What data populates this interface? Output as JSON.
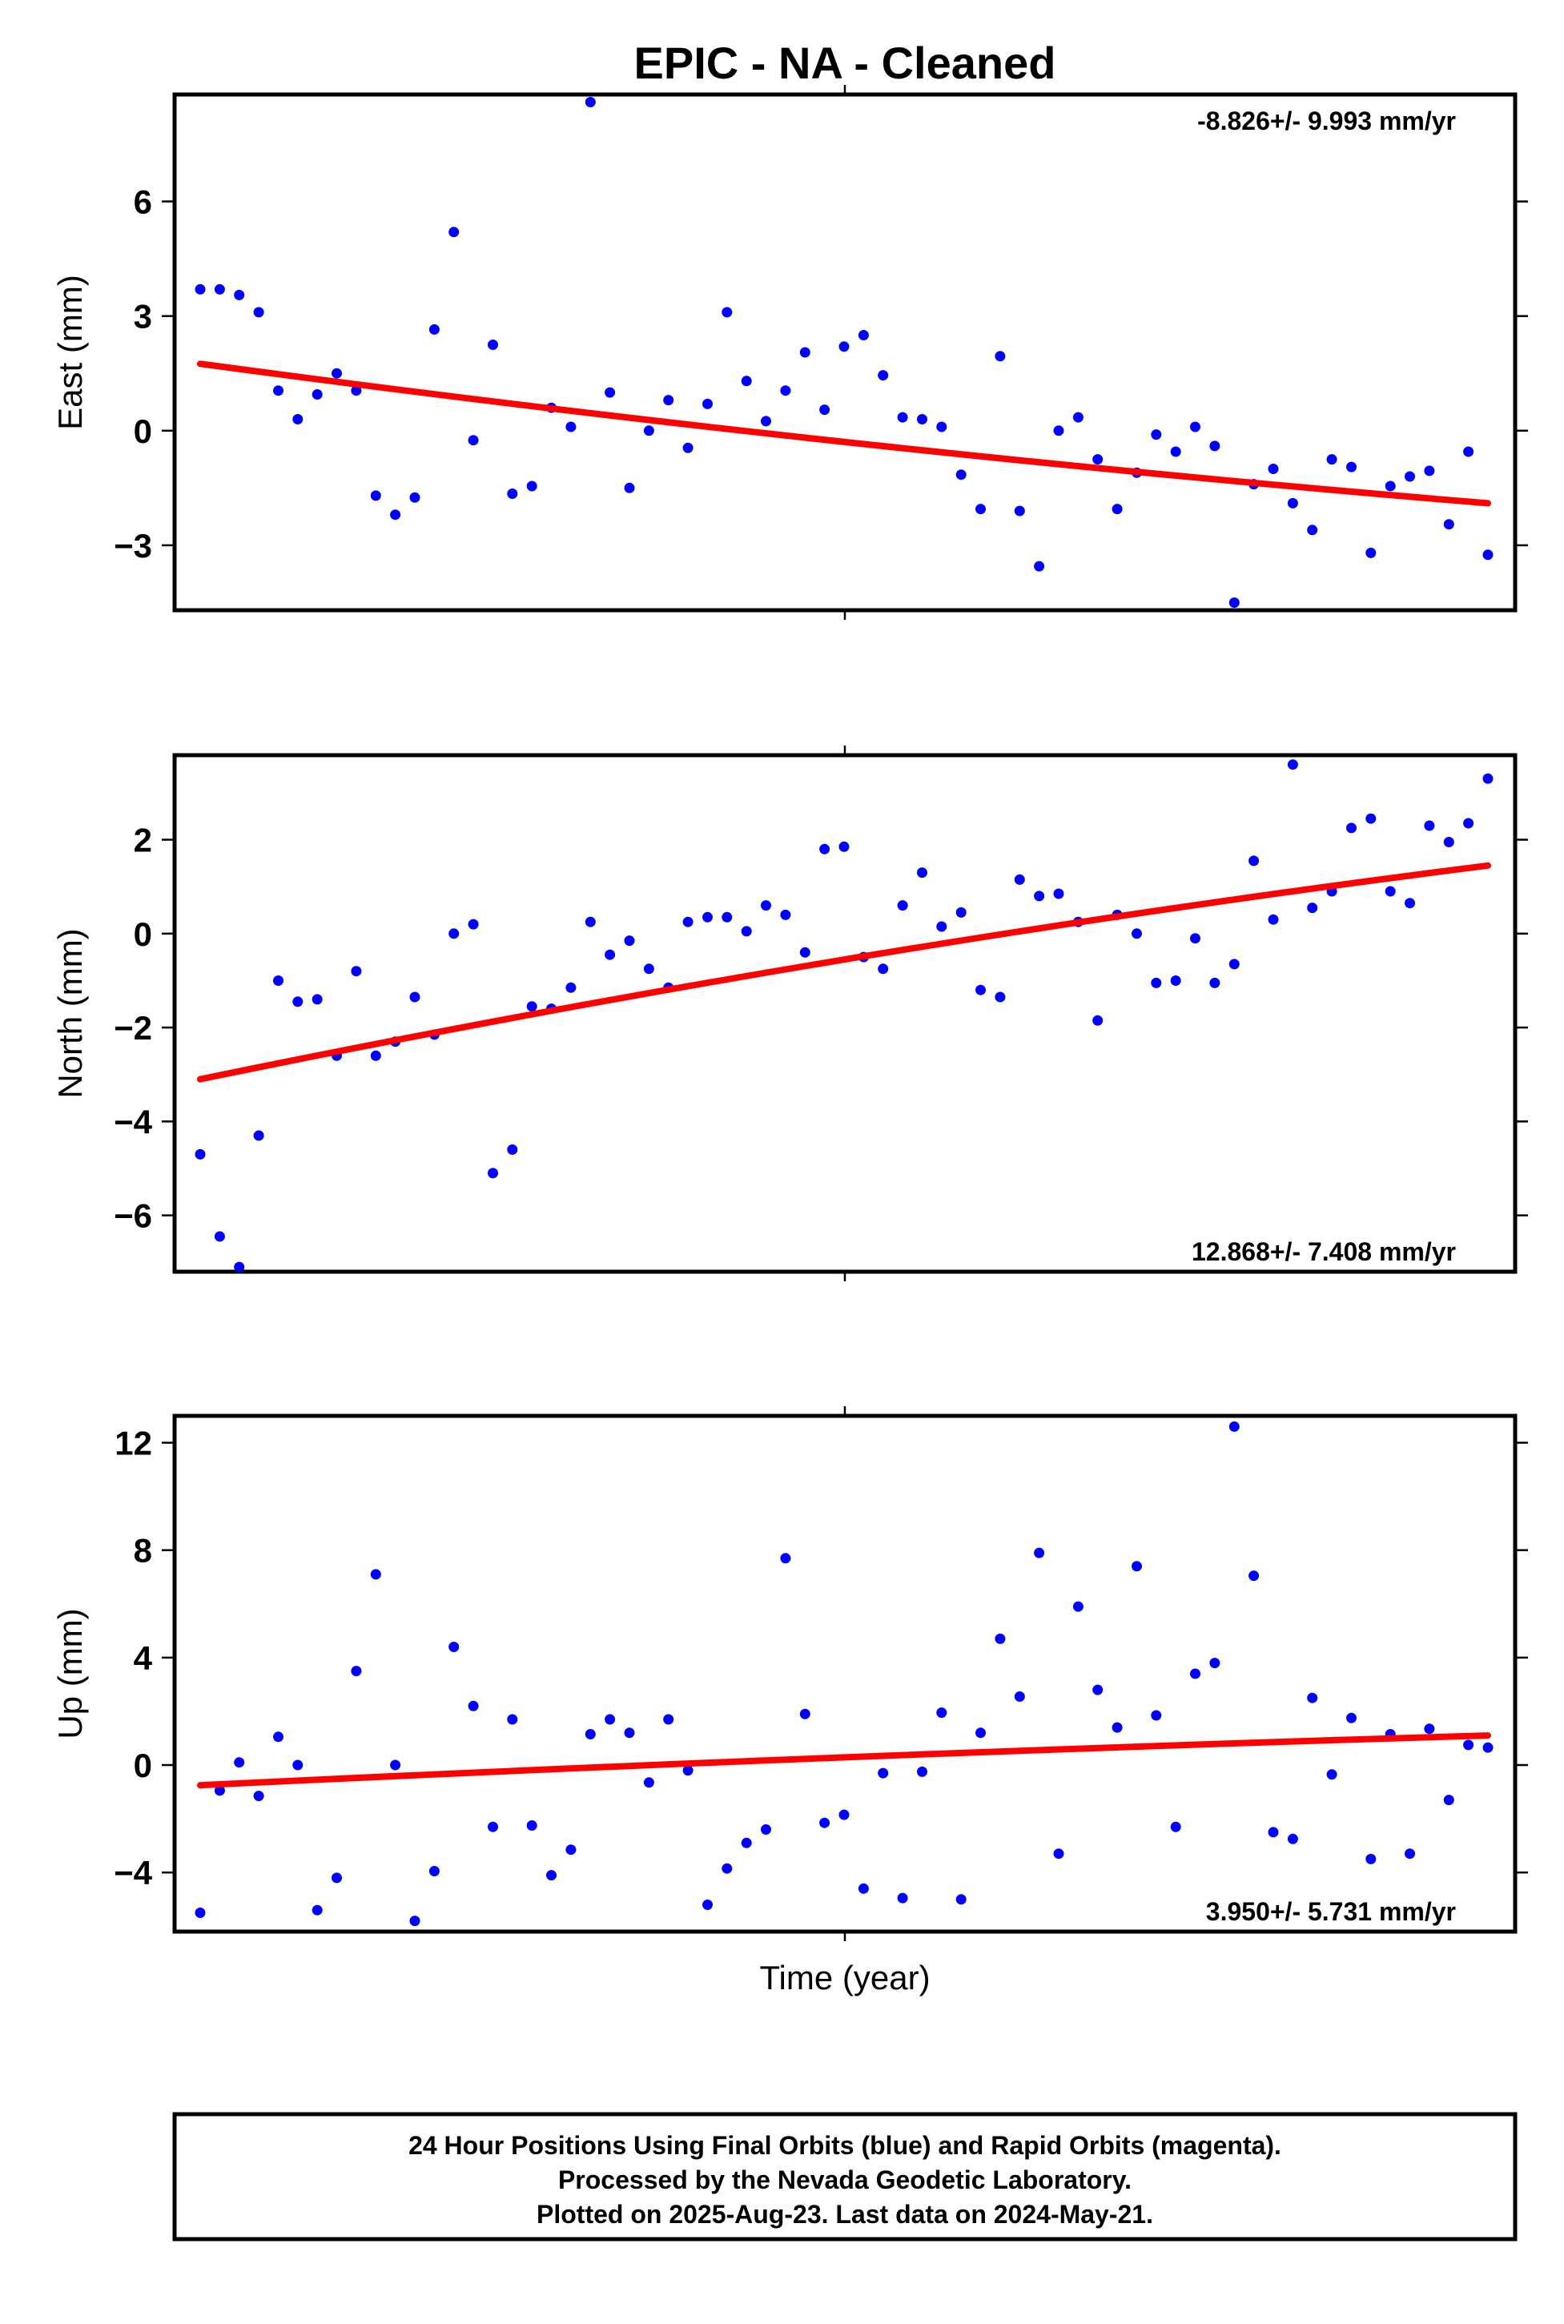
{
  "title": "EPIC  - NA - Cleaned",
  "xlabel": "Time (year)",
  "footer": [
    "24 Hour Positions Using Final Orbits (blue) and Rapid Orbits (magenta).",
    "Processed by the Nevada Geodetic Laboratory.",
    "Plotted on 2025-Aug-23. Last data on 2024-May-21."
  ],
  "colors": {
    "final_orbits": "#0000ff",
    "trend": "#ff0000"
  },
  "chart_data": [
    {
      "type": "scatter",
      "ylabel": "East (mm)",
      "ylim": [
        -4.7,
        8.8
      ],
      "yticks": [
        6,
        3,
        0,
        -3
      ],
      "ytick_labels": [
        "6",
        "3",
        "0",
        "−3"
      ],
      "rate_label": "-8.826+/- 9.993 mm/yr",
      "trend": [
        1.75,
        -1.9
      ],
      "y": [
        3.7,
        3.7,
        3.55,
        3.1,
        1.05,
        0.3,
        0.95,
        1.5,
        1.05,
        -1.7,
        -2.2,
        -1.75,
        2.65,
        5.2,
        -0.25,
        2.25,
        -1.65,
        -1.45,
        0.6,
        0.1,
        8.6,
        1.0,
        -1.5,
        0.0,
        0.8,
        -0.45,
        0.7,
        3.1,
        1.3,
        0.25,
        1.05,
        2.05,
        0.55,
        2.2,
        2.5,
        1.45,
        0.35,
        0.3,
        0.1,
        -1.15,
        -2.05,
        1.95,
        -2.1,
        -3.55,
        0.0,
        0.35,
        -0.75,
        -2.05,
        -1.1,
        -0.1,
        -0.55,
        0.1,
        -0.4,
        -4.5,
        -1.4,
        -1.0,
        -1.9,
        -2.6,
        -0.75,
        -0.95,
        -3.2,
        -1.45,
        -1.2,
        -1.05,
        -2.45,
        -0.55,
        -3.25
      ]
    },
    {
      "type": "scatter",
      "ylabel": "North (mm)",
      "ylim": [
        -7.2,
        3.8
      ],
      "yticks": [
        2,
        0,
        -2,
        -4,
        -6
      ],
      "ytick_labels": [
        "2",
        "0",
        "−2",
        "−4",
        "−6"
      ],
      "rate_label": "12.868+/- 7.408 mm/yr",
      "trend": [
        -3.1,
        1.45
      ],
      "y": [
        -4.7,
        -6.45,
        -7.1,
        -4.3,
        -1.0,
        -1.45,
        -1.4,
        -2.6,
        -0.8,
        -2.6,
        -2.3,
        -1.35,
        -2.15,
        0.0,
        0.2,
        -5.1,
        -4.6,
        -1.55,
        -1.6,
        -1.15,
        0.25,
        -0.45,
        -0.15,
        -0.75,
        -1.15,
        0.25,
        0.35,
        0.35,
        0.05,
        0.6,
        0.4,
        -0.4,
        1.8,
        1.85,
        -0.5,
        -0.75,
        0.6,
        1.3,
        0.15,
        0.45,
        -1.2,
        -1.35,
        1.15,
        0.8,
        0.85,
        0.25,
        -1.85,
        0.4,
        0.0,
        -1.05,
        -1.0,
        -0.1,
        -1.05,
        -0.65,
        1.55,
        0.3,
        3.6,
        0.55,
        0.9,
        2.25,
        2.45,
        0.9,
        0.65,
        2.3,
        1.95,
        2.35,
        3.3
      ]
    },
    {
      "type": "scatter",
      "ylabel": "Up (mm)",
      "ylim": [
        -6.2,
        13.0
      ],
      "yticks": [
        12,
        8,
        4,
        0,
        -4
      ],
      "ytick_labels": [
        "12",
        "8",
        "4",
        "0",
        "−4"
      ],
      "rate_label": "3.950+/- 5.731 mm/yr",
      "trend": [
        -0.75,
        1.1
      ],
      "y": [
        -5.5,
        -0.95,
        0.1,
        -1.15,
        1.05,
        0.0,
        -5.4,
        -4.2,
        3.5,
        7.1,
        0.0,
        -5.8,
        -3.95,
        4.4,
        2.2,
        -2.3,
        1.7,
        -2.25,
        -4.1,
        -3.15,
        1.15,
        1.7,
        1.2,
        -0.65,
        1.7,
        -0.2,
        -5.2,
        -3.85,
        -2.9,
        -2.4,
        7.7,
        1.9,
        -2.15,
        -1.85,
        -4.6,
        -0.3,
        -4.95,
        -0.25,
        1.95,
        -5.0,
        1.2,
        4.7,
        2.55,
        7.9,
        -3.3,
        5.9,
        2.8,
        1.4,
        7.4,
        1.85,
        -2.3,
        3.4,
        3.8,
        12.6,
        7.05,
        -2.5,
        -2.75,
        2.5,
        -0.35,
        1.75,
        -3.5,
        1.15,
        -3.3,
        1.35,
        -1.3,
        0.75,
        0.65
      ]
    }
  ]
}
